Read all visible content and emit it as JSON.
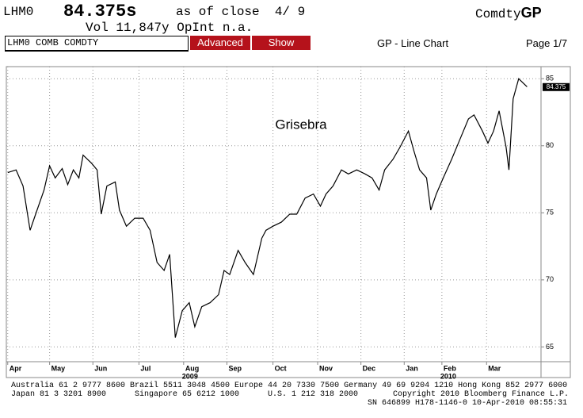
{
  "header": {
    "ticker": "LHM0",
    "price": "84.375s",
    "as_of": "as of close  4/ 9",
    "market": "Comdty",
    "function": "GP",
    "volume": "Vol 11,847y OpInt n.a.",
    "command": "LHM0 COMB COMDTY",
    "buttons": [
      "Advanced",
      "Show"
    ],
    "screen": "GP - Line Chart",
    "page": "Page 1/7"
  },
  "chart_data": {
    "type": "line",
    "annotation": "Grisebra",
    "series": [
      {
        "name": "LHM0 COMB COMDTY",
        "color": "#000000",
        "x": [
          0,
          6,
          11,
          16,
          20,
          26,
          30,
          34,
          39,
          43,
          47,
          51,
          54,
          60,
          64,
          67,
          71,
          77,
          80,
          85,
          91,
          97,
          102,
          107,
          112,
          116,
          120,
          125,
          130,
          134,
          139,
          145,
          151,
          155,
          159,
          165,
          170,
          176,
          182,
          185,
          190,
          196,
          202,
          207,
          213,
          219,
          224,
          228,
          233,
          239,
          244,
          250,
          256,
          261,
          266,
          270,
          276,
          281,
          287,
          291,
          295,
          300,
          303,
          307,
          312,
          318,
          324,
          330,
          334,
          340,
          344,
          348,
          352,
          357,
          359,
          362,
          366,
          369,
          372
        ],
        "values": [
          78.0,
          78.2,
          77.0,
          73.7,
          74.9,
          76.7,
          78.5,
          77.6,
          78.3,
          77.1,
          78.2,
          77.6,
          79.3,
          78.7,
          78.2,
          74.9,
          77.0,
          77.3,
          75.2,
          74.0,
          74.6,
          74.6,
          73.7,
          71.3,
          70.7,
          71.9,
          65.7,
          67.7,
          68.3,
          66.5,
          68.0,
          68.3,
          68.9,
          70.7,
          70.4,
          72.2,
          71.3,
          70.4,
          73.1,
          73.7,
          74.0,
          74.3,
          74.9,
          74.9,
          76.1,
          76.4,
          75.5,
          76.4,
          77.0,
          78.2,
          77.9,
          78.2,
          77.9,
          77.6,
          76.7,
          78.2,
          79.0,
          79.9,
          81.1,
          79.6,
          78.2,
          77.6,
          75.2,
          76.4,
          77.6,
          79.0,
          80.5,
          82.0,
          82.3,
          81.1,
          80.2,
          81.1,
          82.6,
          79.9,
          78.2,
          83.5,
          85.0,
          84.7,
          84.4
        ]
      }
    ],
    "last_value": 84.375,
    "xlim": [
      -1,
      382
    ],
    "xticks": [
      {
        "value": 0,
        "label": "Apr"
      },
      {
        "value": 30,
        "label": "May"
      },
      {
        "value": 61,
        "label": "Jun"
      },
      {
        "value": 94,
        "label": "Jul"
      },
      {
        "value": 126,
        "label": "Aug"
      },
      {
        "value": 157,
        "label": "Sep"
      },
      {
        "value": 190,
        "label": "Oct"
      },
      {
        "value": 222,
        "label": "Nov"
      },
      {
        "value": 253,
        "label": "Dec"
      },
      {
        "value": 284,
        "label": "Jan"
      },
      {
        "value": 311,
        "label": "Feb"
      },
      {
        "value": 343,
        "label": "Mar"
      }
    ],
    "years": [
      {
        "value": 126,
        "label": "2009"
      },
      {
        "value": 311,
        "label": "2010"
      }
    ],
    "ylim": [
      63.9,
      85.9
    ],
    "yticks": [
      65,
      70,
      75,
      80,
      85
    ],
    "grid": true
  },
  "footer": {
    "line1": "Australia 61 2 9777 8600 Brazil 5511 3048 4500 Europe 44 20 7330 7500 Germany 49 69 9204 1210 Hong Kong 852 2977 6000",
    "line2": [
      "Japan 81 3 3201 8900",
      "Singapore 65 6212 1000",
      "U.S. 1 212 318 2000",
      "Copyright 2010 Bloomberg Finance L.P."
    ],
    "line3": "SN 646899 H178-1146-0 10-Apr-2010 08:55:31"
  }
}
